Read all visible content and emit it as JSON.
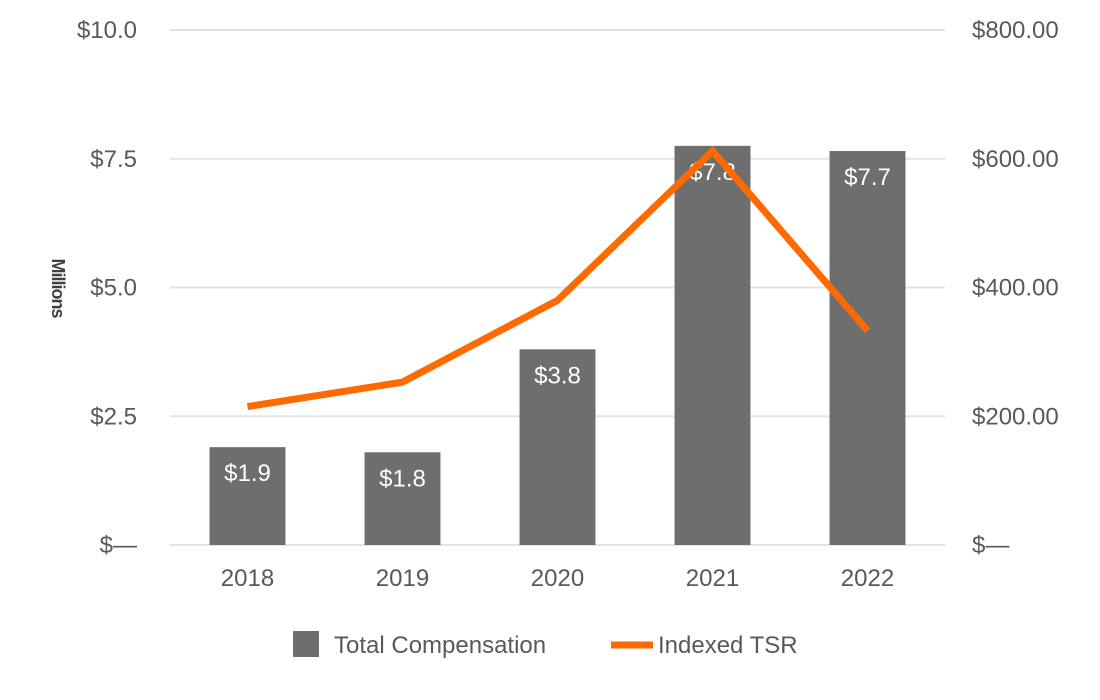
{
  "chart_data": {
    "type": "bar",
    "categories": [
      "2018",
      "2019",
      "2020",
      "2021",
      "2022"
    ],
    "ylabel": "Millions",
    "series": [
      {
        "name": "Total Compensation",
        "kind": "bar",
        "axis": "left",
        "color": "#6e6e6e",
        "values": [
          1.9,
          1.8,
          3.8,
          7.75,
          7.65
        ],
        "labels": [
          "$1.9",
          "$1.8",
          "$3.8",
          "$7.8",
          "$7.7"
        ]
      },
      {
        "name": "Indexed TSR",
        "kind": "line",
        "axis": "right",
        "color": "#ff6a00",
        "values": [
          215,
          253,
          380,
          612,
          333
        ]
      }
    ],
    "left_axis": {
      "ylim": [
        0,
        10
      ],
      "ticks": [
        0,
        2.5,
        5,
        7.5,
        10
      ],
      "tick_labels": [
        "$—",
        "$2.5",
        "$5.0",
        "$7.5",
        "$10.0"
      ]
    },
    "right_axis": {
      "ylim": [
        0,
        800
      ],
      "ticks": [
        0,
        200,
        400,
        600,
        800
      ],
      "tick_labels": [
        "$—",
        "$200.00",
        "$400.00",
        "$600.00",
        "$800.00"
      ]
    },
    "grid": true,
    "legend_position": "bottom-center"
  }
}
